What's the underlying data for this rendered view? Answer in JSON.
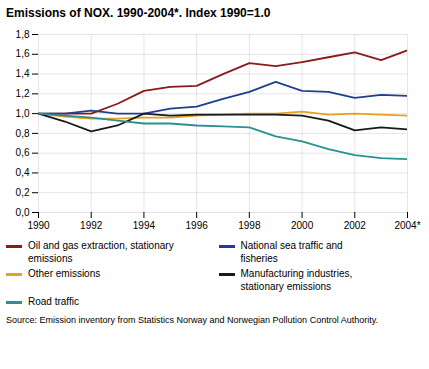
{
  "chart_data": {
    "type": "line",
    "title": "Emissions of NOX. 1990-2004*. Index 1990=1.0",
    "source": "Source: Emission inventory from Statistics Norway and Norwegian Pollution Control Authority.",
    "x": [
      1990,
      1991,
      1992,
      1993,
      1994,
      1995,
      1996,
      1997,
      1998,
      1999,
      2000,
      2001,
      2002,
      2003,
      2004
    ],
    "series": [
      {
        "name": "Oil and gas extraction, stationary emissions",
        "color": "#8B1A1A",
        "values": [
          1.0,
          1.0,
          1.0,
          1.1,
          1.23,
          1.27,
          1.28,
          1.4,
          1.51,
          1.48,
          1.52,
          1.57,
          1.62,
          1.54,
          1.64
        ]
      },
      {
        "name": "National sea traffic and\nfisheries",
        "color": "#1F3F8F",
        "values": [
          1.0,
          1.0,
          1.03,
          1.0,
          1.0,
          1.05,
          1.07,
          1.15,
          1.22,
          1.32,
          1.23,
          1.22,
          1.16,
          1.19,
          1.18
        ]
      },
      {
        "name": "Other emissions",
        "color": "#E8A020",
        "values": [
          1.0,
          0.97,
          0.95,
          0.95,
          0.96,
          0.96,
          0.98,
          0.99,
          1.0,
          1.0,
          1.02,
          0.99,
          1.0,
          0.99,
          0.98
        ]
      },
      {
        "name": "Manufacturing industries,\nstationary emissions",
        "color": "#1A1A1A",
        "values": [
          1.0,
          0.92,
          0.82,
          0.88,
          1.0,
          0.98,
          0.99,
          0.99,
          0.99,
          0.99,
          0.98,
          0.93,
          0.83,
          0.86,
          0.84
        ]
      },
      {
        "name": "Road traffic",
        "color": "#2A9090",
        "values": [
          1.0,
          0.98,
          0.96,
          0.93,
          0.9,
          0.9,
          0.88,
          0.87,
          0.86,
          0.77,
          0.72,
          0.64,
          0.58,
          0.55,
          0.54
        ]
      }
    ],
    "xlim": [
      1990,
      2004
    ],
    "xticks": [
      1990,
      1992,
      1994,
      1996,
      1998,
      2000,
      2002,
      {
        "value": 2004,
        "label": "2004*"
      }
    ],
    "ylim": [
      0.0,
      1.8
    ],
    "yticks": [
      {
        "value": 0.0,
        "label": "0,0"
      },
      {
        "value": 0.2,
        "label": "0,2"
      },
      {
        "value": 0.4,
        "label": "0,4"
      },
      {
        "value": 0.6,
        "label": "0,6"
      },
      {
        "value": 0.8,
        "label": "0,8"
      },
      {
        "value": 1.0,
        "label": "1,0"
      },
      {
        "value": 1.2,
        "label": "1,2"
      },
      {
        "value": 1.4,
        "label": "1,4"
      },
      {
        "value": 1.6,
        "label": "1,6"
      },
      {
        "value": 1.8,
        "label": "1,8"
      }
    ],
    "grid": true,
    "legend": "bottom"
  }
}
